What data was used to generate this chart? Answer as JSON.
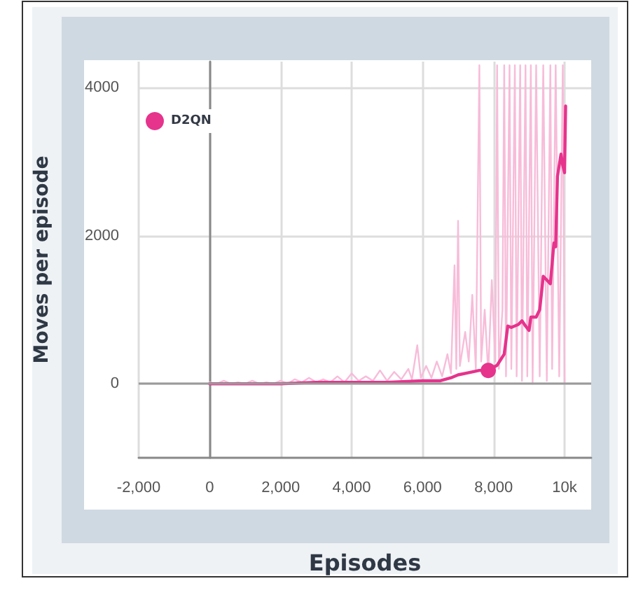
{
  "chart_data": {
    "type": "line",
    "xlabel": "Episodes",
    "ylabel": "Moves per episode",
    "xlim": [
      -2000,
      10750
    ],
    "ylim": [
      -1000,
      4350
    ],
    "xticks": [
      {
        "value": -2000,
        "label": "-2,000"
      },
      0,
      {
        "value": 2000,
        "label": "2,000"
      },
      {
        "value": 4000,
        "label": "4,000"
      },
      {
        "value": 6000,
        "label": "6,000"
      },
      {
        "value": 8000,
        "label": "8,000"
      },
      {
        "value": 10000,
        "label": "10k"
      }
    ],
    "yticks": [
      0,
      2000,
      4000
    ],
    "grid": true,
    "legend": "top left",
    "marker": "none",
    "line_style": "solid",
    "ref_lines": [
      {
        "axis": "y",
        "value": 0,
        "color": "#9a9a9a"
      }
    ],
    "series": [
      {
        "color": "#f7bcd9",
        "x": [
          0,
          200,
          400,
          600,
          800,
          1000,
          1200,
          1400,
          1600,
          1800,
          2000,
          2200,
          2400,
          2600,
          2800,
          3000,
          3200,
          3400,
          3600,
          3800,
          4000,
          4200,
          4400,
          4600,
          4800,
          5000,
          5200,
          5400,
          5600,
          5700,
          5850,
          5950,
          6100,
          6250,
          6400,
          6550,
          6700,
          6800,
          6900,
          6950,
          7000,
          7050,
          7200,
          7300,
          7400,
          7500,
          7600,
          7650,
          7750,
          7850,
          7950,
          8050,
          8100,
          8150,
          8250,
          8300,
          8350,
          8450,
          8500,
          8600,
          8650,
          8750,
          8800,
          8900,
          8950,
          9050,
          9100,
          9200,
          9300,
          9400,
          9500,
          9600,
          9650,
          9750,
          9850,
          9950,
          10000
        ],
        "values": [
          20,
          0,
          40,
          0,
          20,
          0,
          40,
          0,
          20,
          0,
          40,
          0,
          60,
          20,
          80,
          20,
          60,
          20,
          100,
          20,
          140,
          40,
          100,
          40,
          180,
          40,
          160,
          60,
          200,
          60,
          520,
          80,
          240,
          80,
          300,
          100,
          400,
          140,
          1600,
          200,
          2200,
          240,
          700,
          300,
          1200,
          200,
          4300,
          300,
          1000,
          140,
          1400,
          300,
          4300,
          200,
          1000,
          4300,
          100,
          4300,
          200,
          4300,
          100,
          4300,
          40,
          4300,
          100,
          4300,
          0,
          4300,
          100,
          4300,
          40,
          4300,
          200,
          4300,
          100,
          4300,
          0
        ]
      },
      {
        "name": "D2QN",
        "color": "#e6338c",
        "x": [
          0,
          500,
          1000,
          2000,
          3000,
          4000,
          5000,
          6000,
          6500,
          6800,
          7000,
          7300,
          7600,
          7850,
          8100,
          8300,
          8400,
          8500,
          8700,
          8800,
          8900,
          9000,
          9050,
          9200,
          9300,
          9400,
          9500,
          9600,
          9700,
          9750,
          9800,
          9900,
          9950,
          10000,
          10030
        ],
        "values": [
          0,
          0,
          0,
          0,
          20,
          20,
          20,
          40,
          40,
          80,
          120,
          150,
          180,
          180,
          250,
          400,
          780,
          760,
          800,
          850,
          780,
          720,
          900,
          900,
          1000,
          1450,
          1400,
          1350,
          1900,
          1850,
          2800,
          3100,
          2950,
          2850,
          3750
        ]
      },
      {
        "type": "scatter",
        "marker": "circle",
        "color": "#e6338c",
        "x": [
          7850
        ],
        "values": [
          180
        ]
      }
    ]
  }
}
